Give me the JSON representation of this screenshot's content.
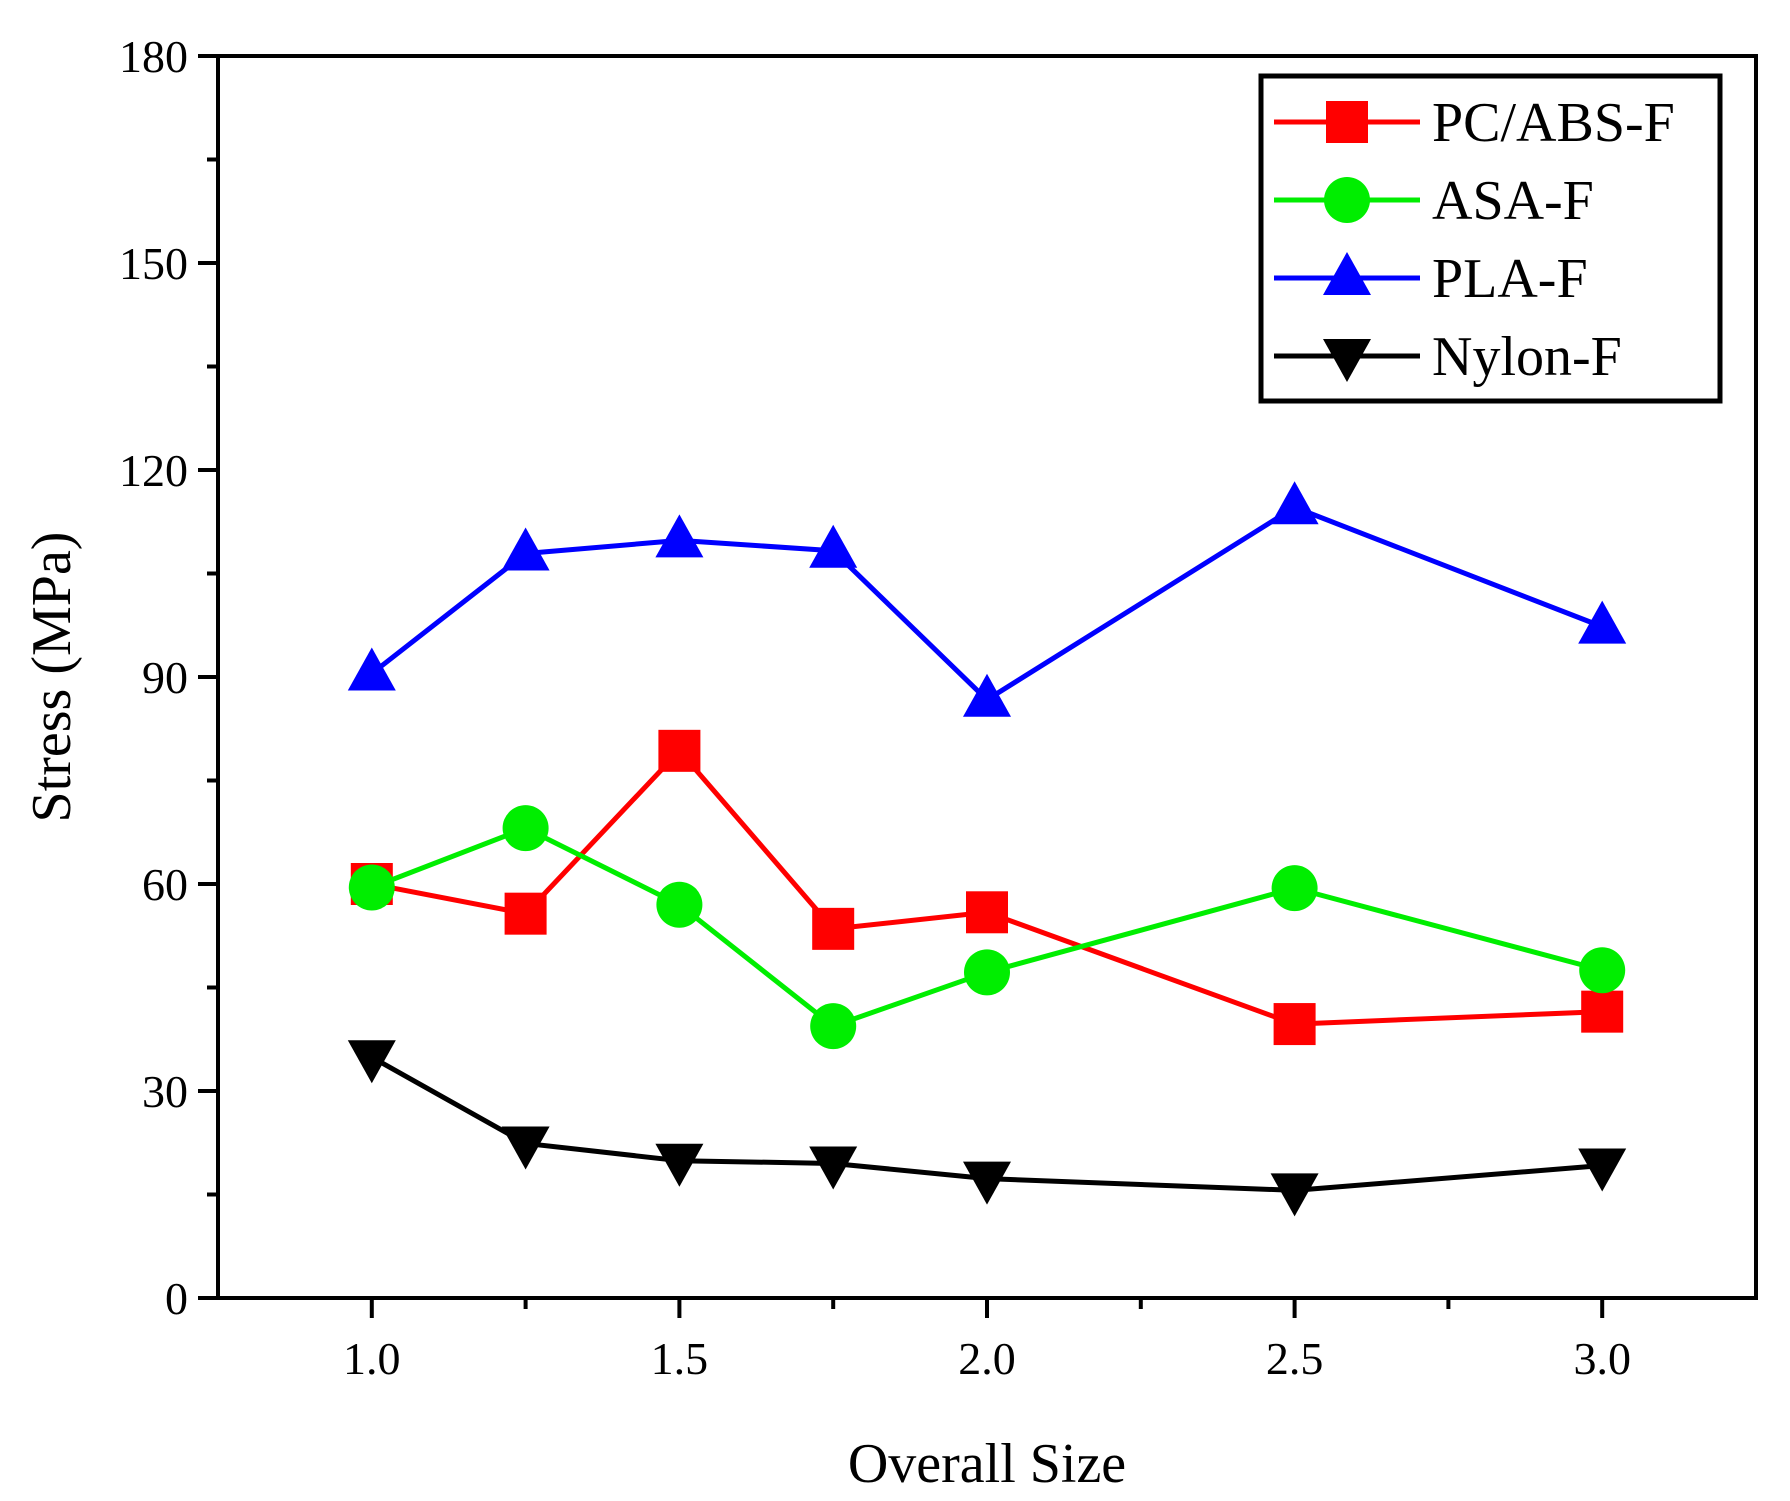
{
  "chart_data": {
    "type": "line",
    "title": "",
    "xlabel": "Overall Size",
    "ylabel": "Stress (MPa)",
    "xlim": [
      0.75,
      3.25
    ],
    "ylim": [
      0,
      180
    ],
    "x_ticks": [
      1.0,
      1.5,
      2.0,
      2.5,
      3.0
    ],
    "x_tick_labels": [
      "1.0",
      "1.5",
      "2.0",
      "2.5",
      "3.0"
    ],
    "x_minor_ticks": [
      1.25,
      1.75,
      2.25,
      2.75
    ],
    "y_ticks": [
      0,
      30,
      60,
      90,
      120,
      150,
      180
    ],
    "y_tick_labels": [
      "0",
      "30",
      "60",
      "90",
      "120",
      "150",
      "180"
    ],
    "y_minor_ticks": [
      15,
      45,
      75,
      105,
      135,
      165
    ],
    "grid": false,
    "legend_position": "top-right",
    "x": [
      1.0,
      1.25,
      1.5,
      1.75,
      2.0,
      2.5,
      3.0
    ],
    "series": [
      {
        "name": "PC/ABS-F",
        "color": "#ff0000",
        "marker": "square",
        "values": [
          60.0,
          55.7,
          79.3,
          53.5,
          55.9,
          39.7,
          41.5
        ]
      },
      {
        "name": "ASA-F",
        "color": "#00ee00",
        "marker": "circle",
        "values": [
          59.5,
          68.1,
          57.0,
          39.4,
          47.2,
          59.4,
          47.5
        ]
      },
      {
        "name": "PLA-F",
        "color": "#0000ff",
        "marker": "triangle-up",
        "values": [
          90.5,
          107.9,
          109.8,
          108.3,
          86.7,
          114.6,
          97.3
        ]
      },
      {
        "name": "Nylon-F",
        "color": "#000000",
        "marker": "triangle-down",
        "values": [
          34.9,
          22.4,
          19.9,
          19.5,
          17.3,
          15.6,
          19.2
        ]
      }
    ]
  }
}
